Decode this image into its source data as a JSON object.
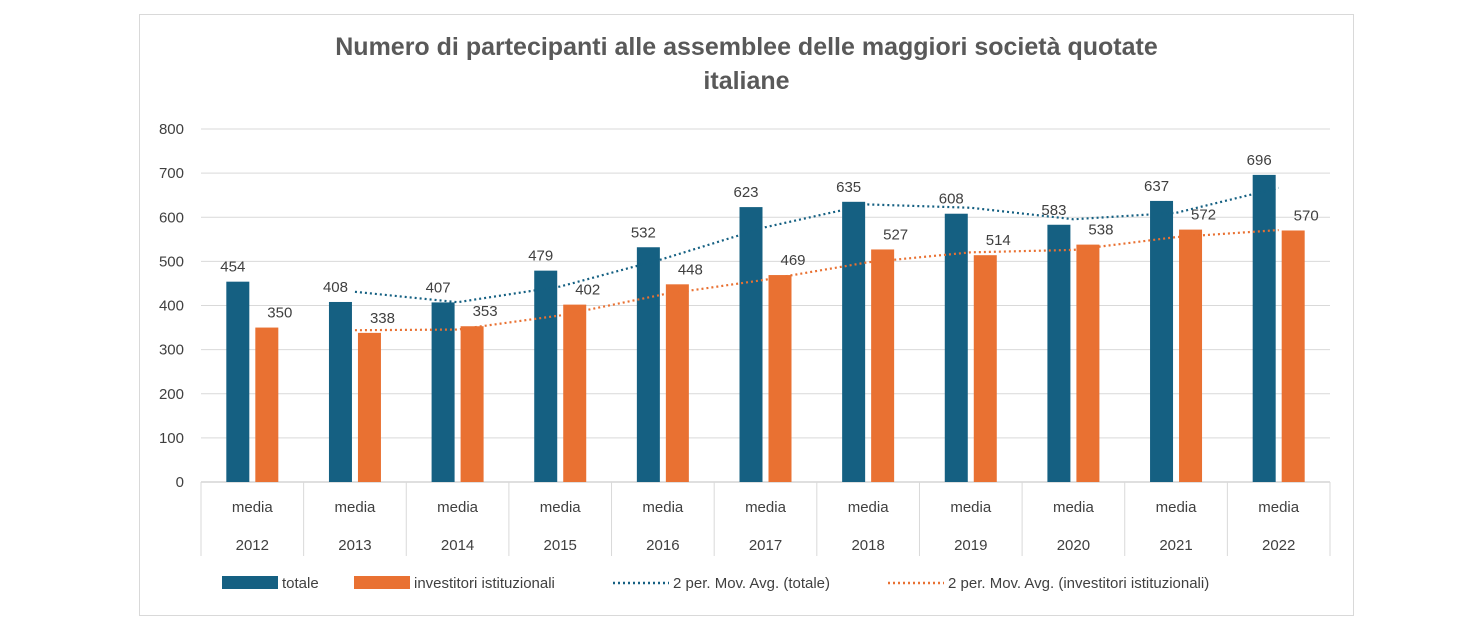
{
  "chart_data": {
    "type": "bar",
    "title_lines": [
      "Numero di partecipanti alle assemblee delle maggiori società quotate",
      "italiane"
    ],
    "category_top_label": "media",
    "categories": [
      "2012",
      "2013",
      "2014",
      "2015",
      "2016",
      "2017",
      "2018",
      "2019",
      "2020",
      "2021",
      "2022"
    ],
    "series": [
      {
        "name": "totale",
        "color": "#156082",
        "values": [
          454,
          408,
          407,
          479,
          532,
          623,
          635,
          608,
          583,
          637,
          696
        ]
      },
      {
        "name": "investitori istituzionali",
        "color": "#E97132",
        "values": [
          350,
          338,
          353,
          402,
          448,
          469,
          527,
          514,
          538,
          572,
          570
        ]
      }
    ],
    "trendlines": [
      {
        "name": "2 per. Mov. Avg. (totale)",
        "series": 0,
        "period": 2,
        "style": "dotted",
        "color": "#156082"
      },
      {
        "name": "2 per. Mov. Avg. (investitori istituzionali)",
        "series": 1,
        "period": 2,
        "style": "dotted",
        "color": "#E97132"
      }
    ],
    "ylim": [
      0,
      800
    ],
    "yticks": [
      0,
      100,
      200,
      300,
      400,
      500,
      600,
      700,
      800
    ],
    "grid": true,
    "legend_position": "bottom",
    "data_labels": true
  }
}
